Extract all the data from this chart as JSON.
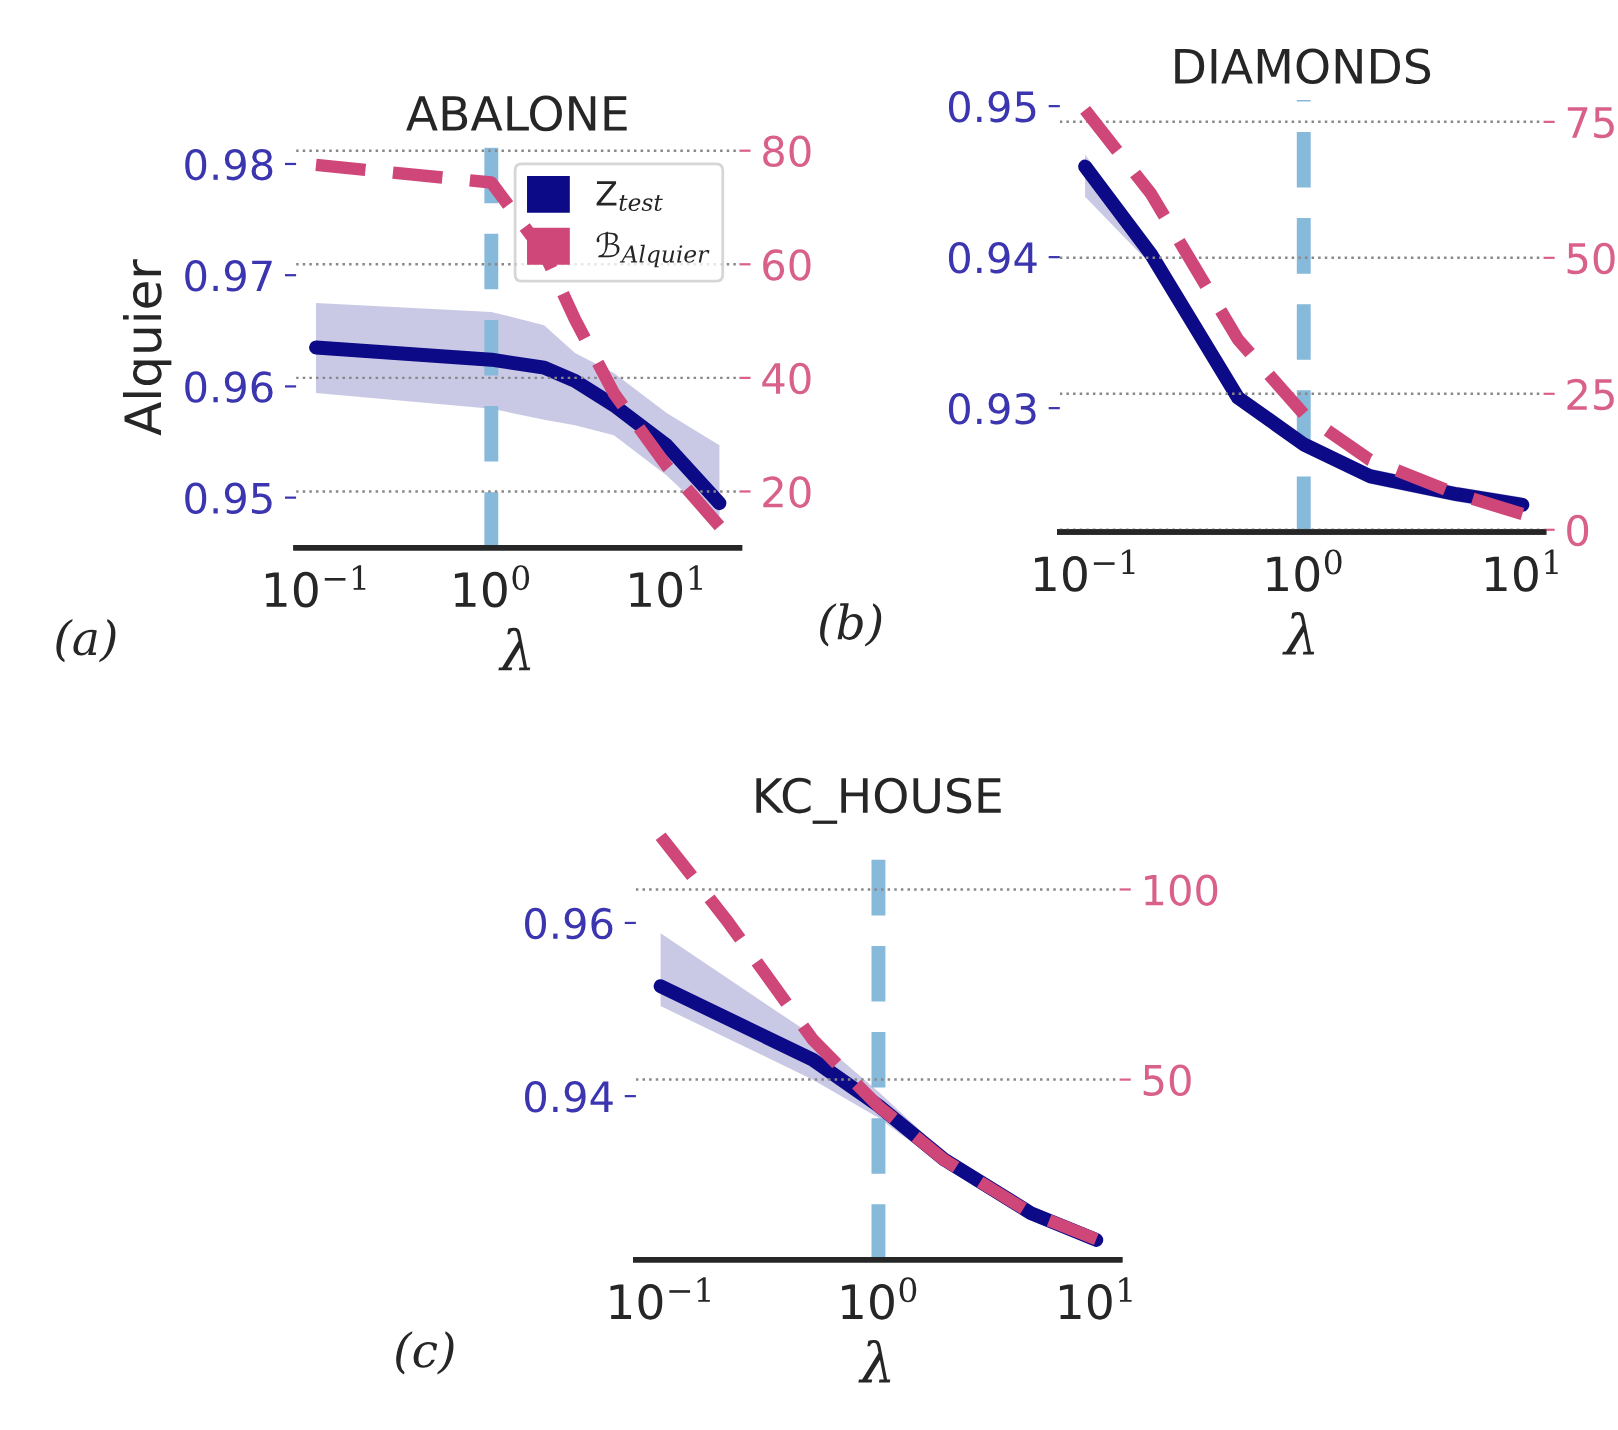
{
  "chart_data": [
    {
      "type": "line",
      "title": "ABALONE",
      "xlabel": "λ",
      "ylabel": "Alquier",
      "annotations": [
        "(a)"
      ],
      "log": "x",
      "xlim": [
        0.077,
        26
      ],
      "xticks": [
        {
          "value": 0.1,
          "label": "10$^{−1}$"
        },
        {
          "value": 1,
          "label": "10$^{0}$"
        },
        {
          "value": 10,
          "label": "10$^{1}$"
        }
      ],
      "ylim": [
        0.9455,
        0.9815
      ],
      "yticks": [
        0.95,
        0.96,
        0.97,
        0.98
      ],
      "y2lim": [
        10.1,
        80.6
      ],
      "y2ticks": [
        20,
        40,
        60,
        80
      ],
      "grid": "y",
      "legend": "top right",
      "ref_lines": [
        {
          "axis": "x",
          "value": 1,
          "color": "#86b9da",
          "line_style": "dashed"
        }
      ],
      "series": [
        {
          "name": "Z$_{test}$",
          "color": "#0c0a87",
          "x": [
            0.1,
            1,
            2,
            3,
            5,
            10,
            20
          ],
          "values": [
            0.9635,
            0.9624,
            0.9617,
            0.9605,
            0.9583,
            0.9547,
            0.9495
          ],
          "lower": [
            0.9594,
            0.958,
            0.957,
            0.9565,
            0.9556,
            0.952,
            0.9475
          ],
          "upper": [
            0.9675,
            0.9667,
            0.9655,
            0.963,
            0.9612,
            0.9576,
            0.9547
          ],
          "line_style": "solid"
        },
        {
          "name": "ℬ$_{Alquier}$",
          "color": "#cf4778",
          "axis": "y2",
          "x": [
            0.1,
            1,
            2,
            3,
            5,
            10,
            20
          ],
          "values": [
            77.5,
            74.4,
            62,
            50.3,
            37.3,
            24.5,
            13.9
          ],
          "line_style": "dashed"
        }
      ]
    },
    {
      "type": "line",
      "title": "DIAMONDS",
      "xlabel": "λ",
      "annotations": [
        "(b)"
      ],
      "log": "x",
      "xlim": [
        0.0766,
        12.5
      ],
      "xticks": [
        {
          "value": 0.1,
          "label": "10$^{−1}$"
        },
        {
          "value": 1,
          "label": "10$^{0}$"
        },
        {
          "value": 10,
          "label": "10$^{1}$"
        }
      ],
      "ylim": [
        0.9218,
        0.9504
      ],
      "yticks": [
        0.93,
        0.94,
        0.95
      ],
      "y2lim": [
        -0.4,
        79
      ],
      "y2ticks": [
        0,
        25,
        50,
        75
      ],
      "grid": "y",
      "ref_lines": [
        {
          "axis": "x",
          "value": 1,
          "color": "#86b9da",
          "line_style": "dashed"
        }
      ],
      "series": [
        {
          "color": "#0c0a87",
          "x": [
            0.1,
            0.2,
            0.5,
            1,
            2,
            5,
            10
          ],
          "values": [
            0.946,
            0.9402,
            0.9307,
            0.9276,
            0.9255,
            0.9243,
            0.9236
          ],
          "lower": [
            0.944,
            0.9395,
            0.9302,
            0.9271,
            0.925,
            0.9238,
            0.9231
          ],
          "upper": [
            0.9468,
            0.9407,
            0.9312,
            0.9281,
            0.926,
            0.9248,
            0.9241
          ],
          "line_style": "solid"
        },
        {
          "color": "#cf4778",
          "axis": "y2",
          "x": [
            0.1,
            0.2,
            0.5,
            1,
            2,
            5,
            10
          ],
          "values": [
            77.2,
            61.8,
            35,
            21.3,
            12.9,
            6.6,
            2.9
          ],
          "line_style": "dashed"
        }
      ]
    },
    {
      "type": "line",
      "title": "KC_HOUSE",
      "xlabel": "λ",
      "annotations": [
        "(c)"
      ],
      "log": "x",
      "xlim": [
        0.077,
        12.8
      ],
      "xticks": [
        {
          "value": 0.1,
          "label": "10$^{−1}$"
        },
        {
          "value": 1,
          "label": "10$^{0}$"
        },
        {
          "value": 10,
          "label": "10$^{1}$"
        }
      ],
      "ylim": [
        0.9211,
        0.9708
      ],
      "yticks": [
        0.94,
        0.96
      ],
      "y2lim": [
        2.6,
        115.8
      ],
      "y2ticks": [
        50,
        100
      ],
      "grid": "y",
      "ref_lines": [
        {
          "axis": "x",
          "value": 1,
          "color": "#86b9da",
          "line_style": "dashed"
        }
      ],
      "series": [
        {
          "color": "#0c0a87",
          "x": [
            0.1,
            0.5,
            1,
            2,
            5,
            10
          ],
          "values": [
            0.9527,
            0.9442,
            0.9389,
            0.9327,
            0.9265,
            0.9234
          ],
          "lower": [
            0.9504,
            0.9419,
            0.9375,
            0.9319,
            0.9257,
            0.9226
          ],
          "upper": [
            0.9588,
            0.947,
            0.9405,
            0.9335,
            0.9273,
            0.9242
          ],
          "line_style": "solid"
        },
        {
          "color": "#cf4778",
          "axis": "y2",
          "x": [
            0.1,
            0.2,
            0.5,
            1,
            2,
            5,
            10
          ],
          "values": [
            114,
            92.1,
            60.5,
            43,
            28.9,
            14.9,
            8
          ],
          "line_style": "dashed"
        }
      ]
    }
  ]
}
